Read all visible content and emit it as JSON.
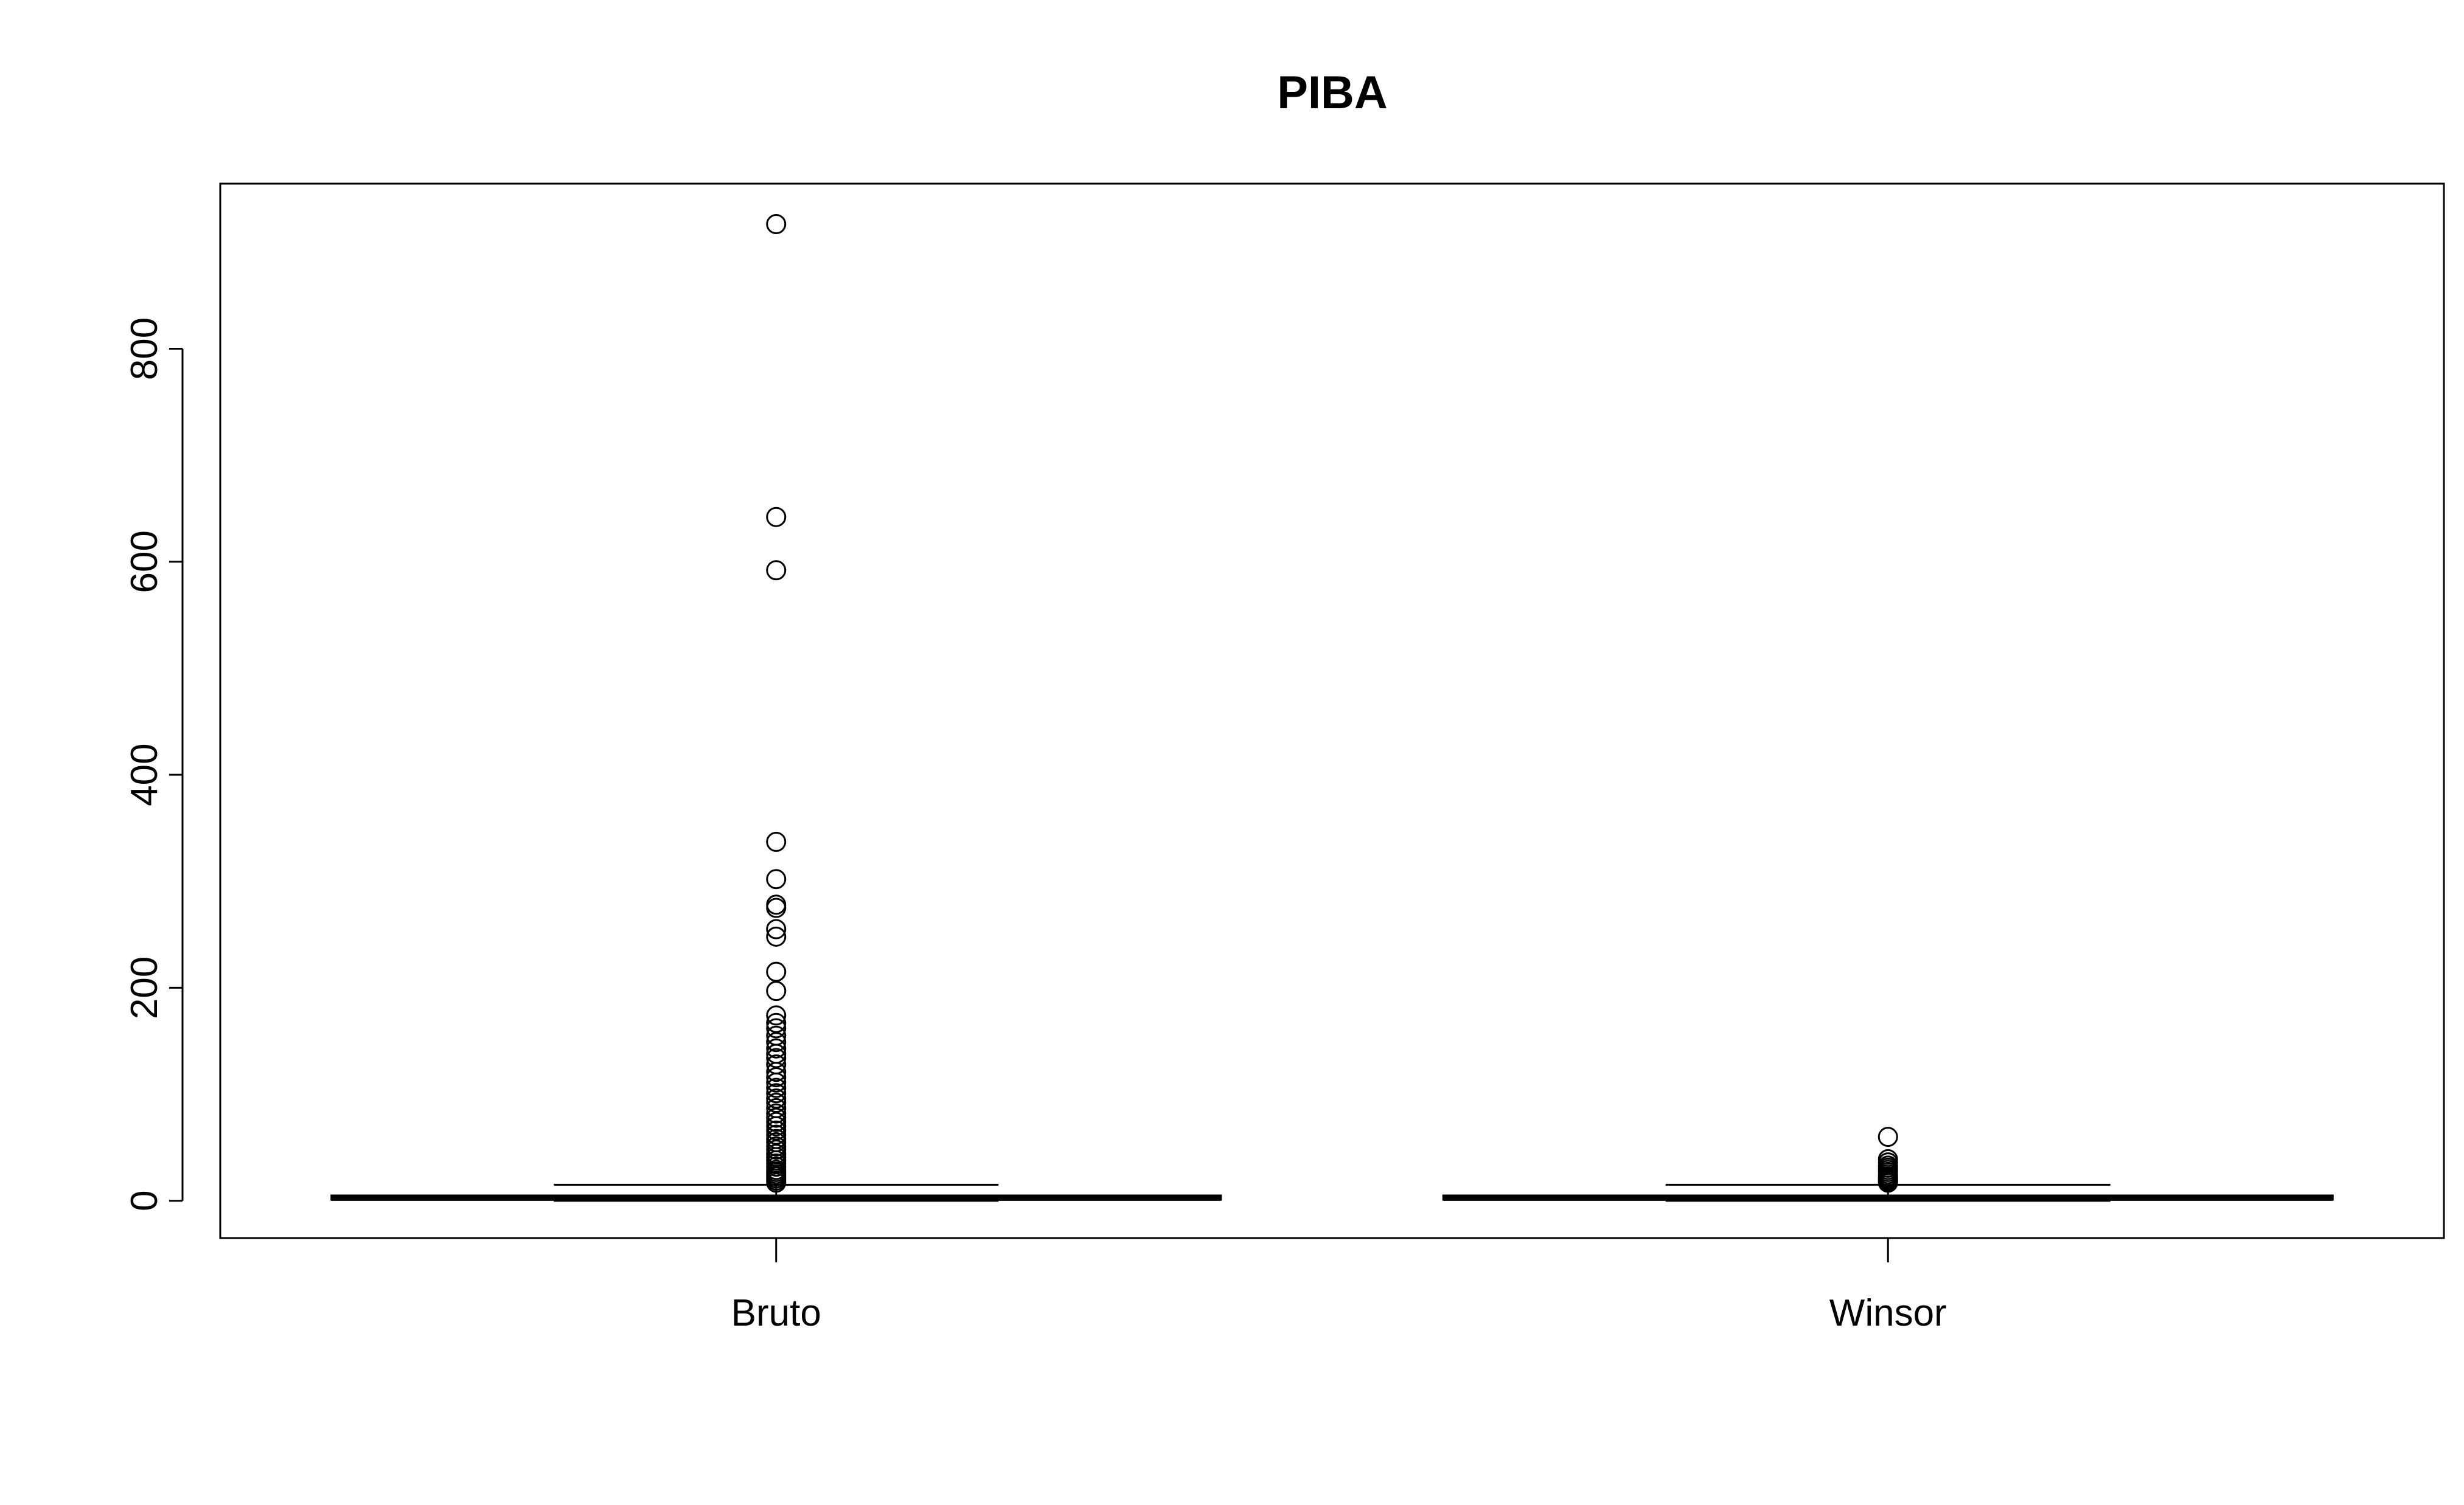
{
  "chart_data": {
    "type": "boxplot",
    "title": "PIBA",
    "xlabel": "",
    "ylabel": "",
    "ylim": [
      -35,
      955
    ],
    "yticks": [
      0,
      200,
      400,
      600,
      800
    ],
    "grid": false,
    "categories": [
      "Bruto",
      "Winsor"
    ],
    "boxes": [
      {
        "name": "Bruto",
        "whisker_low": 0,
        "q1": 1,
        "median": 2.5,
        "q3": 5,
        "whisker_high": 15,
        "outliers": [
          917,
          642,
          592,
          337,
          302,
          278,
          275,
          255,
          248,
          215,
          197,
          174,
          167,
          162,
          155,
          149,
          143,
          138,
          134,
          128,
          121,
          116,
          111,
          106,
          101,
          96,
          92,
          87,
          82,
          78,
          74,
          70,
          66,
          62,
          58,
          55,
          51,
          48,
          44,
          41,
          38,
          35,
          32,
          29,
          27,
          25,
          23,
          21,
          19,
          17
        ]
      },
      {
        "name": "Winsor",
        "whisker_low": 0,
        "q1": 1,
        "median": 2.5,
        "q3": 5,
        "whisker_high": 15,
        "outliers": [
          60,
          39,
          36,
          33,
          31,
          29,
          27,
          25,
          23,
          22,
          21,
          20,
          19,
          18,
          17
        ]
      }
    ]
  }
}
